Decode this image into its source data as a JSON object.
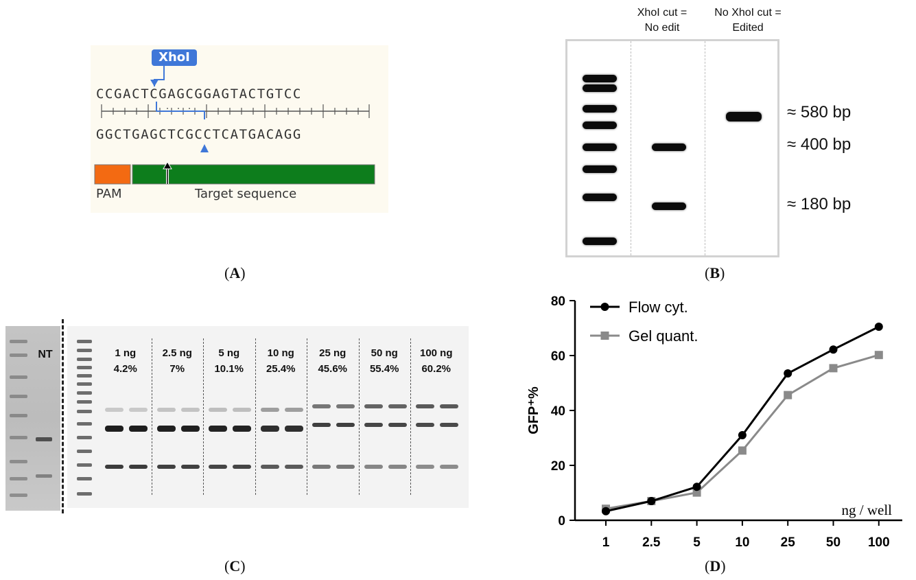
{
  "panels": {
    "a": {
      "label_letter": "A",
      "enzyme": "XhoI",
      "top_strand": "CCGACTCGAGCGGAGTACTGTCC",
      "bottom_strand": "GGCTGAGCTCGCCTCATGACAGG",
      "pam_label": "PAM",
      "target_label": "Target sequence",
      "colors": {
        "enzyme_tag": "#3f77d8",
        "pam": "#f36a12",
        "target": "#0d7d1c"
      }
    },
    "b": {
      "label_letter": "B",
      "lane2_header_l1": "XhoI cut =",
      "lane2_header_l2": "No edit",
      "lane3_header_l1": "No XhoI cut =",
      "lane3_header_l2": "Edited",
      "size_580": "≈ 580 bp",
      "size_400": "≈ 400 bp",
      "size_180": "≈ 180 bp"
    },
    "c": {
      "label_letter": "C",
      "nt_label": "NT",
      "groups": [
        {
          "dose": "1 ng",
          "pct": "4.2%"
        },
        {
          "dose": "2.5 ng",
          "pct": "7%"
        },
        {
          "dose": "5 ng",
          "pct": "10.1%"
        },
        {
          "dose": "10 ng",
          "pct": "25.4%"
        },
        {
          "dose": "25 ng",
          "pct": "45.6%"
        },
        {
          "dose": "50 ng",
          "pct": "55.4%"
        },
        {
          "dose": "100 ng",
          "pct": "60.2%"
        }
      ]
    },
    "d": {
      "label_letter": "D",
      "ylabel": "GFP⁺%",
      "xlabel": "ng / well"
    }
  },
  "chart_data": {
    "type": "line",
    "categories": [
      "1",
      "2.5",
      "5",
      "10",
      "25",
      "50",
      "100"
    ],
    "series": [
      {
        "name": "Flow cyt.",
        "values": [
          3.3,
          7.0,
          12.2,
          31.0,
          53.5,
          62.2,
          70.5
        ],
        "color": "#000000",
        "marker": "circle"
      },
      {
        "name": "Gel quant.",
        "values": [
          4.2,
          7.0,
          10.1,
          25.4,
          45.6,
          55.4,
          60.2
        ],
        "color": "#8a8a8a",
        "marker": "square"
      }
    ],
    "ylim": [
      0,
      80
    ],
    "yticks": [
      0,
      20,
      40,
      60,
      80
    ],
    "ylabel": "GFP⁺%",
    "xlabel": "ng / well",
    "legend": "top-left",
    "grid": false
  }
}
